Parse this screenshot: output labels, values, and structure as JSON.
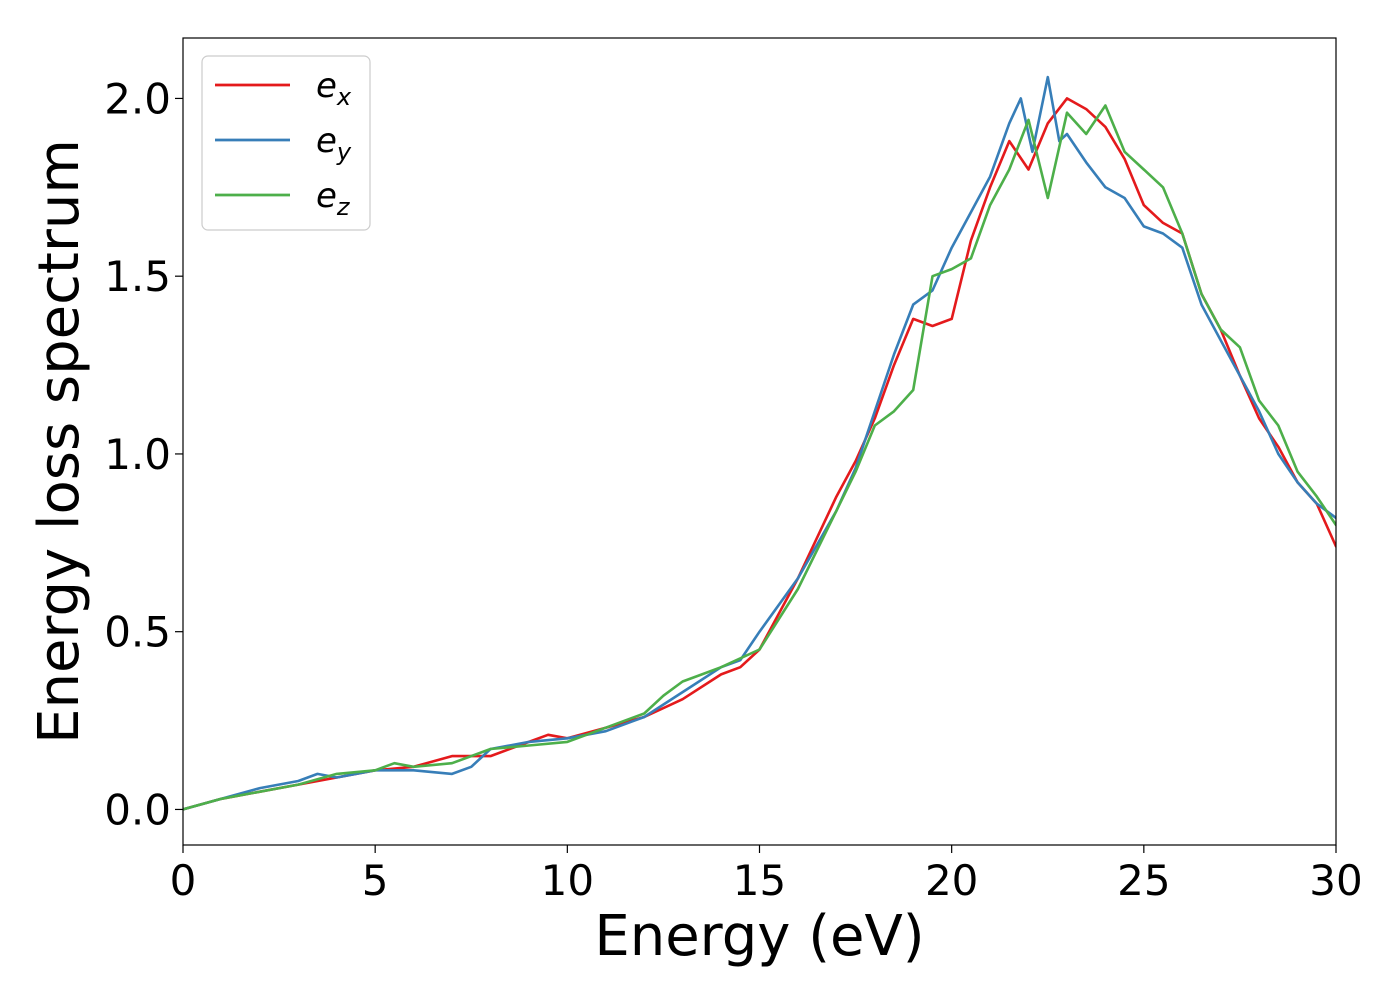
{
  "chart_data": {
    "type": "line",
    "title": "",
    "xlabel": "Energy (eV)",
    "ylabel": "Energy loss spectrum",
    "xlim": [
      0,
      30
    ],
    "ylim": [
      -0.1,
      2.17
    ],
    "xticks": [
      0,
      5,
      10,
      15,
      20,
      25,
      30
    ],
    "yticks": [
      0.0,
      0.5,
      1.0,
      1.5,
      2.0
    ],
    "xtick_labels": [
      "0",
      "5",
      "10",
      "15",
      "20",
      "25",
      "30"
    ],
    "ytick_labels": [
      "0.0",
      "0.5",
      "1.0",
      "1.5",
      "2.0"
    ],
    "grid": false,
    "legend_position": "top-left",
    "series": [
      {
        "name": "e_x",
        "label_base": "e",
        "label_sub": "x",
        "color": "#e41a1c",
        "x": [
          0,
          1,
          2,
          3,
          4,
          5,
          6,
          7,
          8,
          9,
          9.5,
          10,
          11,
          12,
          13,
          14,
          14.5,
          15,
          16,
          17,
          17.5,
          18,
          18.5,
          19,
          19.5,
          20,
          20.5,
          21,
          21.5,
          22,
          22.5,
          23,
          23.5,
          24,
          24.5,
          25,
          25.5,
          26,
          26.5,
          27,
          27.5,
          28,
          28.5,
          29,
          29.5,
          30
        ],
        "y": [
          0.0,
          0.03,
          0.05,
          0.07,
          0.09,
          0.11,
          0.12,
          0.15,
          0.15,
          0.19,
          0.21,
          0.2,
          0.23,
          0.26,
          0.31,
          0.38,
          0.4,
          0.45,
          0.65,
          0.88,
          0.98,
          1.1,
          1.25,
          1.38,
          1.36,
          1.38,
          1.6,
          1.75,
          1.88,
          1.8,
          1.93,
          2.0,
          1.97,
          1.92,
          1.83,
          1.7,
          1.65,
          1.62,
          1.45,
          1.35,
          1.22,
          1.1,
          1.02,
          0.92,
          0.86,
          0.74
        ]
      },
      {
        "name": "e_y",
        "label_base": "e",
        "label_sub": "y",
        "color": "#377eb8",
        "x": [
          0,
          1,
          2,
          3,
          3.5,
          4,
          5,
          6,
          7,
          7.5,
          8,
          9,
          10,
          11,
          12,
          13,
          14,
          14.5,
          15,
          16,
          17,
          17.5,
          18,
          18.5,
          19,
          19.5,
          20,
          20.5,
          21,
          21.5,
          21.8,
          22.1,
          22.5,
          22.8,
          23,
          23.5,
          24,
          24.5,
          25,
          25.5,
          26,
          26.5,
          27,
          27.5,
          28,
          28.5,
          29,
          29.5,
          30
        ],
        "y": [
          0.0,
          0.03,
          0.06,
          0.08,
          0.1,
          0.09,
          0.11,
          0.11,
          0.1,
          0.12,
          0.17,
          0.19,
          0.2,
          0.22,
          0.26,
          0.33,
          0.4,
          0.42,
          0.5,
          0.65,
          0.84,
          0.96,
          1.12,
          1.28,
          1.42,
          1.46,
          1.58,
          1.68,
          1.78,
          1.93,
          2.0,
          1.85,
          2.06,
          1.88,
          1.9,
          1.82,
          1.75,
          1.72,
          1.64,
          1.62,
          1.58,
          1.42,
          1.32,
          1.22,
          1.12,
          1.0,
          0.92,
          0.86,
          0.82
        ]
      },
      {
        "name": "e_z",
        "label_base": "e",
        "label_sub": "z",
        "color": "#4daf4a",
        "x": [
          0,
          1,
          2,
          3,
          4,
          5,
          5.5,
          6,
          7,
          8,
          9,
          10,
          11,
          12,
          12.5,
          13,
          13.5,
          14,
          15,
          16,
          17,
          17.5,
          18,
          18.5,
          19,
          19.5,
          20,
          20.5,
          21,
          21.5,
          22,
          22.5,
          23,
          23.5,
          24,
          24.5,
          25,
          25.5,
          26,
          26.5,
          27,
          27.5,
          28,
          28.5,
          29,
          29.5,
          30
        ],
        "y": [
          0.0,
          0.03,
          0.05,
          0.07,
          0.1,
          0.11,
          0.13,
          0.12,
          0.13,
          0.17,
          0.18,
          0.19,
          0.23,
          0.27,
          0.32,
          0.36,
          0.38,
          0.4,
          0.45,
          0.62,
          0.84,
          0.95,
          1.08,
          1.12,
          1.18,
          1.5,
          1.52,
          1.55,
          1.7,
          1.8,
          1.94,
          1.72,
          1.96,
          1.9,
          1.98,
          1.85,
          1.8,
          1.75,
          1.62,
          1.45,
          1.35,
          1.3,
          1.15,
          1.08,
          0.95,
          0.88,
          0.8
        ]
      }
    ]
  }
}
